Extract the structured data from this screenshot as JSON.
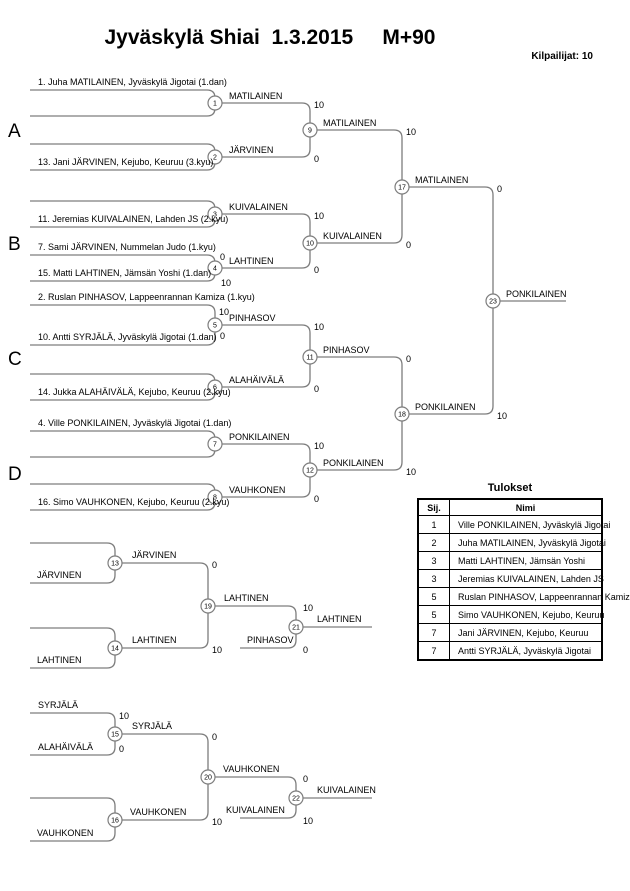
{
  "title": "Jyväskylä Shiai  1.3.2015     M+90",
  "competitors_label": "Kilpailijat: 10",
  "sections": [
    "A",
    "B",
    "C",
    "D"
  ],
  "bracket": {
    "seeds": {
      "s1": "1. Juha MATILAINEN, Jyväskylä Jigotai (1.dan)",
      "s13": "13. Jani JÄRVINEN, Kejubo, Keuruu (3.kyu)",
      "s11": "11. Jeremias KUIVALAINEN, Lahden JS (2.kyu)",
      "s7": "7. Sami JÄRVINEN, Nummelan Judo (1.kyu)",
      "s15": "15. Matti LAHTINEN, Jämsän Yoshi (1.dan)",
      "s2": "2. Ruslan PINHASOV, Lappeenrannan Kamiza (1.kyu)",
      "s10": "10. Antti SYRJÄLÄ, Jyväskylä Jigotai (1.dan)",
      "s14": "14. Jukka ALAHÄIVÄLÄ, Kejubo, Keuruu (2.kyu)",
      "s4": "4. Ville PONKILAINEN, Jyväskylä Jigotai (1.dan)",
      "s16": "16. Simo VAUHKONEN, Kejubo, Keuruu (2.kyu)"
    },
    "matches": {
      "m1": {
        "num": "1",
        "winner": "MATILAINEN",
        "winner_score": "10"
      },
      "m2": {
        "num": "2",
        "winner": "JÄRVINEN",
        "winner_score": "0"
      },
      "m3": {
        "num": "3",
        "winner": "KUIVALAINEN",
        "winner_score": "10"
      },
      "m4": {
        "num": "4",
        "winner": "LAHTINEN",
        "winner_score": "0",
        "top_score": "0",
        "bottom_score": "10"
      },
      "m5": {
        "num": "5",
        "winner": "PINHASOV",
        "winner_score": "10",
        "top_score": "10",
        "bottom_score": "0"
      },
      "m6": {
        "num": "6",
        "winner": "ALAHÄIVÄLÄ",
        "winner_score": "0"
      },
      "m7": {
        "num": "7",
        "winner": "PONKILAINEN",
        "winner_score": "10"
      },
      "m8": {
        "num": "8",
        "winner": "VAUHKONEN",
        "winner_score": "0"
      },
      "m9": {
        "num": "9",
        "winner": "MATILAINEN",
        "winner_score": "10"
      },
      "m10": {
        "num": "10",
        "winner": "KUIVALAINEN",
        "winner_score": "0"
      },
      "m11": {
        "num": "11",
        "winner": "PINHASOV",
        "winner_score": "0"
      },
      "m12": {
        "num": "12",
        "winner": "PONKILAINEN",
        "winner_score": "10"
      },
      "m17": {
        "num": "17",
        "winner": "MATILAINEN",
        "winner_score": "0"
      },
      "m18": {
        "num": "18",
        "winner": "PONKILAINEN",
        "winner_score": "10"
      },
      "m23": {
        "num": "23",
        "winner": "PONKILAINEN"
      },
      "m13": {
        "num": "13",
        "entrant": "JÄRVINEN",
        "winner": "JÄRVINEN",
        "winner_score": "0"
      },
      "m14": {
        "num": "14",
        "entrant": "LAHTINEN",
        "winner": "LAHTINEN",
        "winner_score": "10"
      },
      "m19": {
        "num": "19",
        "winner": "LAHTINEN",
        "winner_score": "10"
      },
      "m21": {
        "num": "21",
        "entrant": "PINHASOV",
        "entrant_score": "0",
        "winner": "LAHTINEN"
      },
      "m15": {
        "num": "15",
        "top_entrant": "SYRJÄLÄ",
        "bottom_entrant": "ALAHÄIVÄLÄ",
        "top_score": "10",
        "bottom_score": "0",
        "winner": "SYRJÄLÄ",
        "winner_score": "0"
      },
      "m16": {
        "num": "16",
        "entrant": "VAUHKONEN",
        "winner": "VAUHKONEN",
        "winner_score": "10"
      },
      "m20": {
        "num": "20",
        "winner": "VAUHKONEN",
        "winner_score": "0"
      },
      "m22": {
        "num": "22",
        "entrant": "KUIVALAINEN",
        "entrant_score": "10",
        "winner": "KUIVALAINEN"
      }
    }
  },
  "results_table": {
    "title": "Tulokset",
    "columns": [
      "Sij.",
      "Nimi"
    ],
    "rows": [
      {
        "sij": "1",
        "nimi": "Ville PONKILAINEN, Jyväskylä Jigotai"
      },
      {
        "sij": "2",
        "nimi": "Juha MATILAINEN, Jyväskylä Jigotai"
      },
      {
        "sij": "3",
        "nimi": "Matti LAHTINEN, Jämsän Yoshi"
      },
      {
        "sij": "3",
        "nimi": "Jeremias KUIVALAINEN, Lahden JS"
      },
      {
        "sij": "5",
        "nimi": "Ruslan PINHASOV, Lappeenrannan Kamiza"
      },
      {
        "sij": "5",
        "nimi": "Simo VAUHKONEN, Kejubo, Keuruu"
      },
      {
        "sij": "7",
        "nimi": "Jani JÄRVINEN, Kejubo, Keuruu"
      },
      {
        "sij": "7",
        "nimi": "Antti SYRJÄLÄ, Jyväskylä Jigotai"
      }
    ]
  }
}
